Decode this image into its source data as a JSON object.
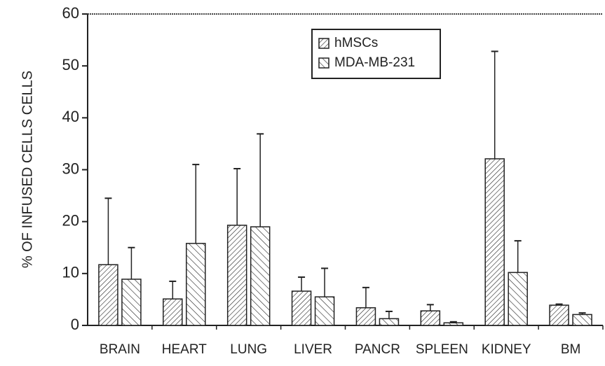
{
  "chart_data": {
    "type": "bar",
    "y_label": "% OF INFUSED CELLS CELLS",
    "categories": [
      "BRAIN",
      "HEART",
      "LUNG",
      "LIVER",
      "PANCR",
      "SPLEEN",
      "KIDNEY",
      "BM"
    ],
    "series": [
      {
        "name": "hMSCs",
        "color": "#222222",
        "values": [
          11.7,
          5.1,
          19.3,
          6.6,
          3.4,
          2.8,
          32.1,
          3.9
        ],
        "errors": [
          12.8,
          3.4,
          10.9,
          2.7,
          3.9,
          1.2,
          20.7,
          0.2
        ]
      },
      {
        "name": "MDA-MB-231",
        "color": "#222222",
        "values": [
          8.9,
          15.8,
          19.0,
          5.5,
          1.3,
          0.5,
          10.2,
          2.1
        ],
        "errors": [
          6.1,
          15.2,
          17.9,
          5.5,
          1.4,
          0.2,
          6.1,
          0.3
        ]
      }
    ],
    "ylim": [
      0,
      60
    ],
    "yticks": [
      0,
      10,
      20,
      30,
      40,
      50,
      60
    ]
  }
}
